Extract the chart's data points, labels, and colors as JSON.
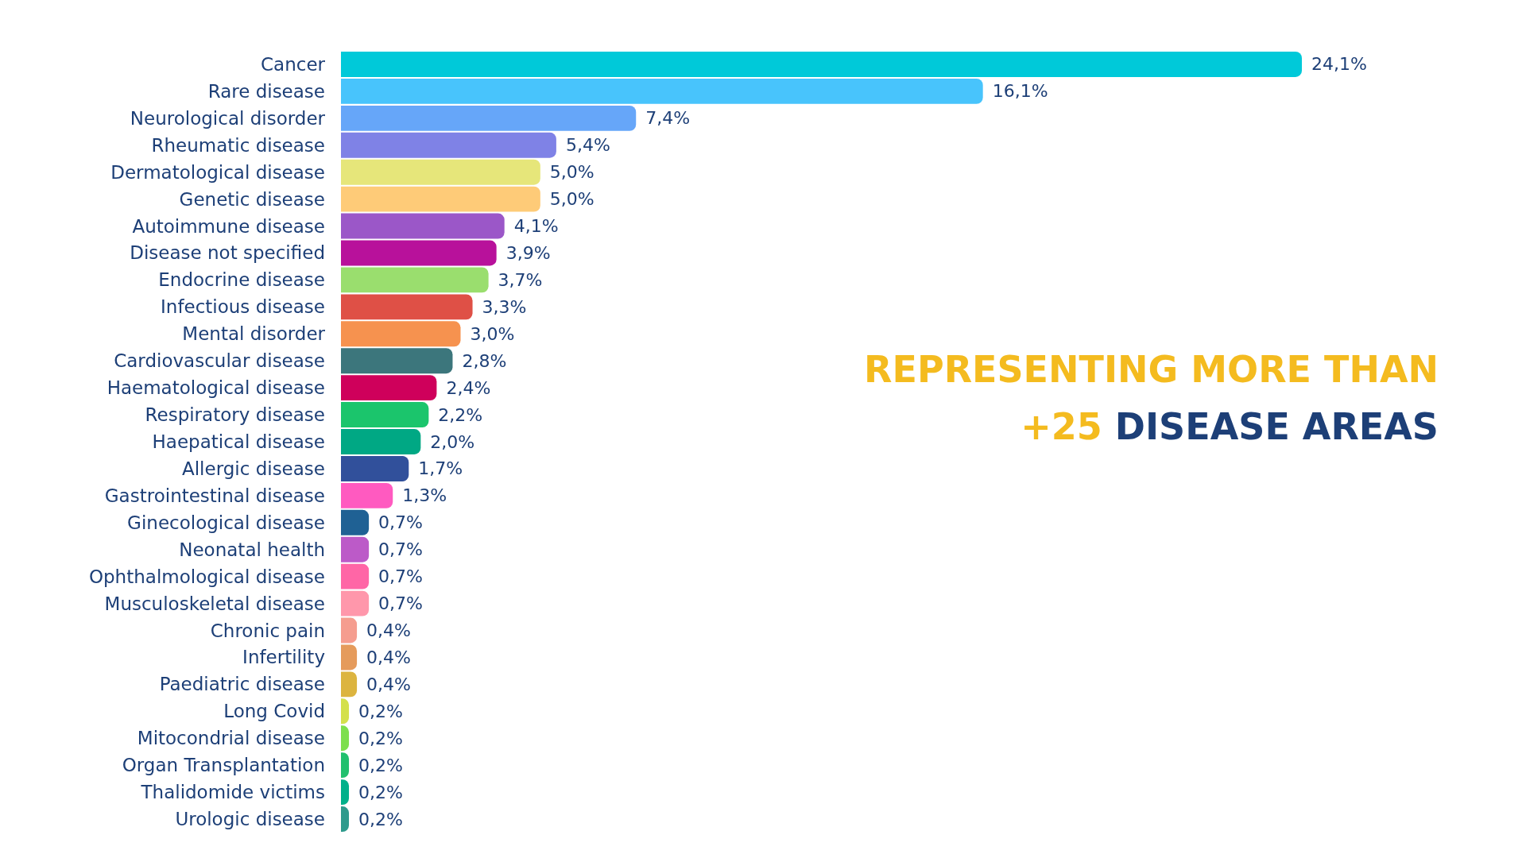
{
  "chart_data": {
    "type": "bar",
    "orientation": "horizontal",
    "title": "REPRESENTING MORE THAN",
    "subtitle": "+25 DISEASE AREAS",
    "categories": [
      "Cancer",
      "Rare disease",
      "Neurological disorder",
      "Rheumatic disease",
      "Dermatological disease",
      "Genetic disease",
      "Autoimmune disease",
      "Disease not specified",
      "Endocrine disease",
      "Infectious disease",
      "Mental disorder",
      "Cardiovascular disease",
      "Haematological disease",
      "Respiratory disease",
      "Haepatical disease",
      "Allergic disease",
      "Gastrointestinal disease",
      "Ginecological disease",
      "Neonatal health",
      "Ophthalmological disease",
      "Musculoskeletal disease",
      "Chronic pain",
      "Infertility",
      "Paediatric disease",
      "Long Covid",
      "Mitocondrial disease",
      "Organ Transplantation",
      "Thalidomide victims",
      "Urologic disease"
    ],
    "values": [
      24.1,
      16.1,
      7.4,
      5.4,
      5.0,
      5.0,
      4.1,
      3.9,
      3.7,
      3.3,
      3.0,
      2.8,
      2.4,
      2.2,
      2.0,
      1.7,
      1.3,
      0.7,
      0.7,
      0.7,
      0.7,
      0.4,
      0.4,
      0.4,
      0.2,
      0.2,
      0.2,
      0.2,
      0.2
    ],
    "value_labels": [
      "24,1%",
      "16,1%",
      "7,4%",
      "5,4%",
      "5,0%",
      "5,0%",
      "4,1%",
      "3,9%",
      "3,7%",
      "3,3%",
      "3,0%",
      "2,8%",
      "2,4%",
      "2,2%",
      "2,0%",
      "1,7%",
      "1,3%",
      "0,7%",
      "0,7%",
      "0,7%",
      "0,7%",
      "0,4%",
      "0,4%",
      "0,4%",
      "0,2%",
      "0,2%",
      "0,2%",
      "0,2%",
      "0,2%"
    ],
    "colors": [
      "#00c9d9",
      "#48c4fc",
      "#66a6f9",
      "#7f82e6",
      "#e6e67a",
      "#fecb78",
      "#9b57c8",
      "#b8119b",
      "#9ade6e",
      "#df5046",
      "#f6924f",
      "#3c767c",
      "#cf005b",
      "#1bc56c",
      "#00a884",
      "#31509b",
      "#ff5ac0",
      "#1f6194",
      "#bc5ac8",
      "#ff66a6",
      "#ff97ab",
      "#f59d8f",
      "#e59b5c",
      "#dcb43f",
      "#d4e04c",
      "#7ddf4d",
      "#21c06e",
      "#00b08a",
      "#2e9a8c"
    ]
  }
}
